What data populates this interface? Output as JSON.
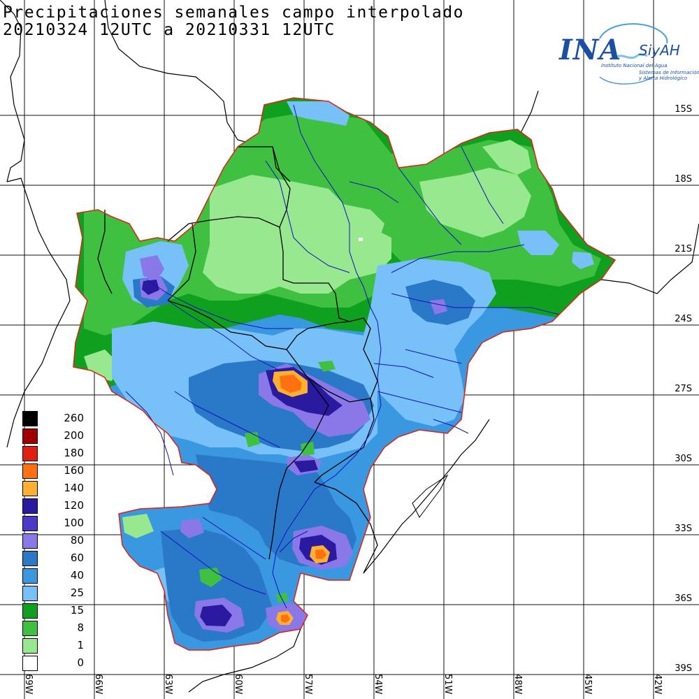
{
  "title": {
    "line1": "Precipitaciones semanales campo interpolado",
    "line2": "20210324 12UTC a 20210331 12UTC"
  },
  "logo": {
    "ina": "INA",
    "siyah": "SiyAH",
    "subtitle1": "Instituto Nacional del Agua",
    "subtitle2a": "Sistemas de Información",
    "subtitle2b": "y Alerta Hidrológico"
  },
  "axes": {
    "lat_labels": [
      "15S",
      "18S",
      "21S",
      "24S",
      "27S",
      "30S",
      "33S",
      "36S",
      "39S"
    ],
    "lon_labels": [
      "69W",
      "66W",
      "63W",
      "60W",
      "57W",
      "54W",
      "51W",
      "48W",
      "45W",
      "42W"
    ]
  },
  "legend": {
    "values": [
      "260",
      "200",
      "180",
      "160",
      "140",
      "120",
      "100",
      "80",
      "60",
      "40",
      "25",
      "15",
      "8",
      "1",
      "0"
    ],
    "colors": [
      "#000000",
      "#a00000",
      "#e02010",
      "#ff7010",
      "#ffb030",
      "#2a1aa0",
      "#4a3ac8",
      "#8a78e8",
      "#2a78c8",
      "#3a98e0",
      "#78c0f8",
      "#10a020",
      "#40c040",
      "#98e890",
      "#ffffff"
    ]
  },
  "map": {
    "colors": {
      "light_green": "#98e890",
      "green": "#40c040",
      "dark_green": "#10a020",
      "light_blue": "#78c0f8",
      "blue": "#3a98e0",
      "mid_blue": "#2a78c8",
      "lavender": "#8a78e8",
      "purple": "#4a3ac8",
      "indigo": "#2a1aa0",
      "gold": "#ffb030",
      "orange": "#ff7010",
      "basin_outline": "#e02010",
      "river": "#1010c0"
    }
  }
}
